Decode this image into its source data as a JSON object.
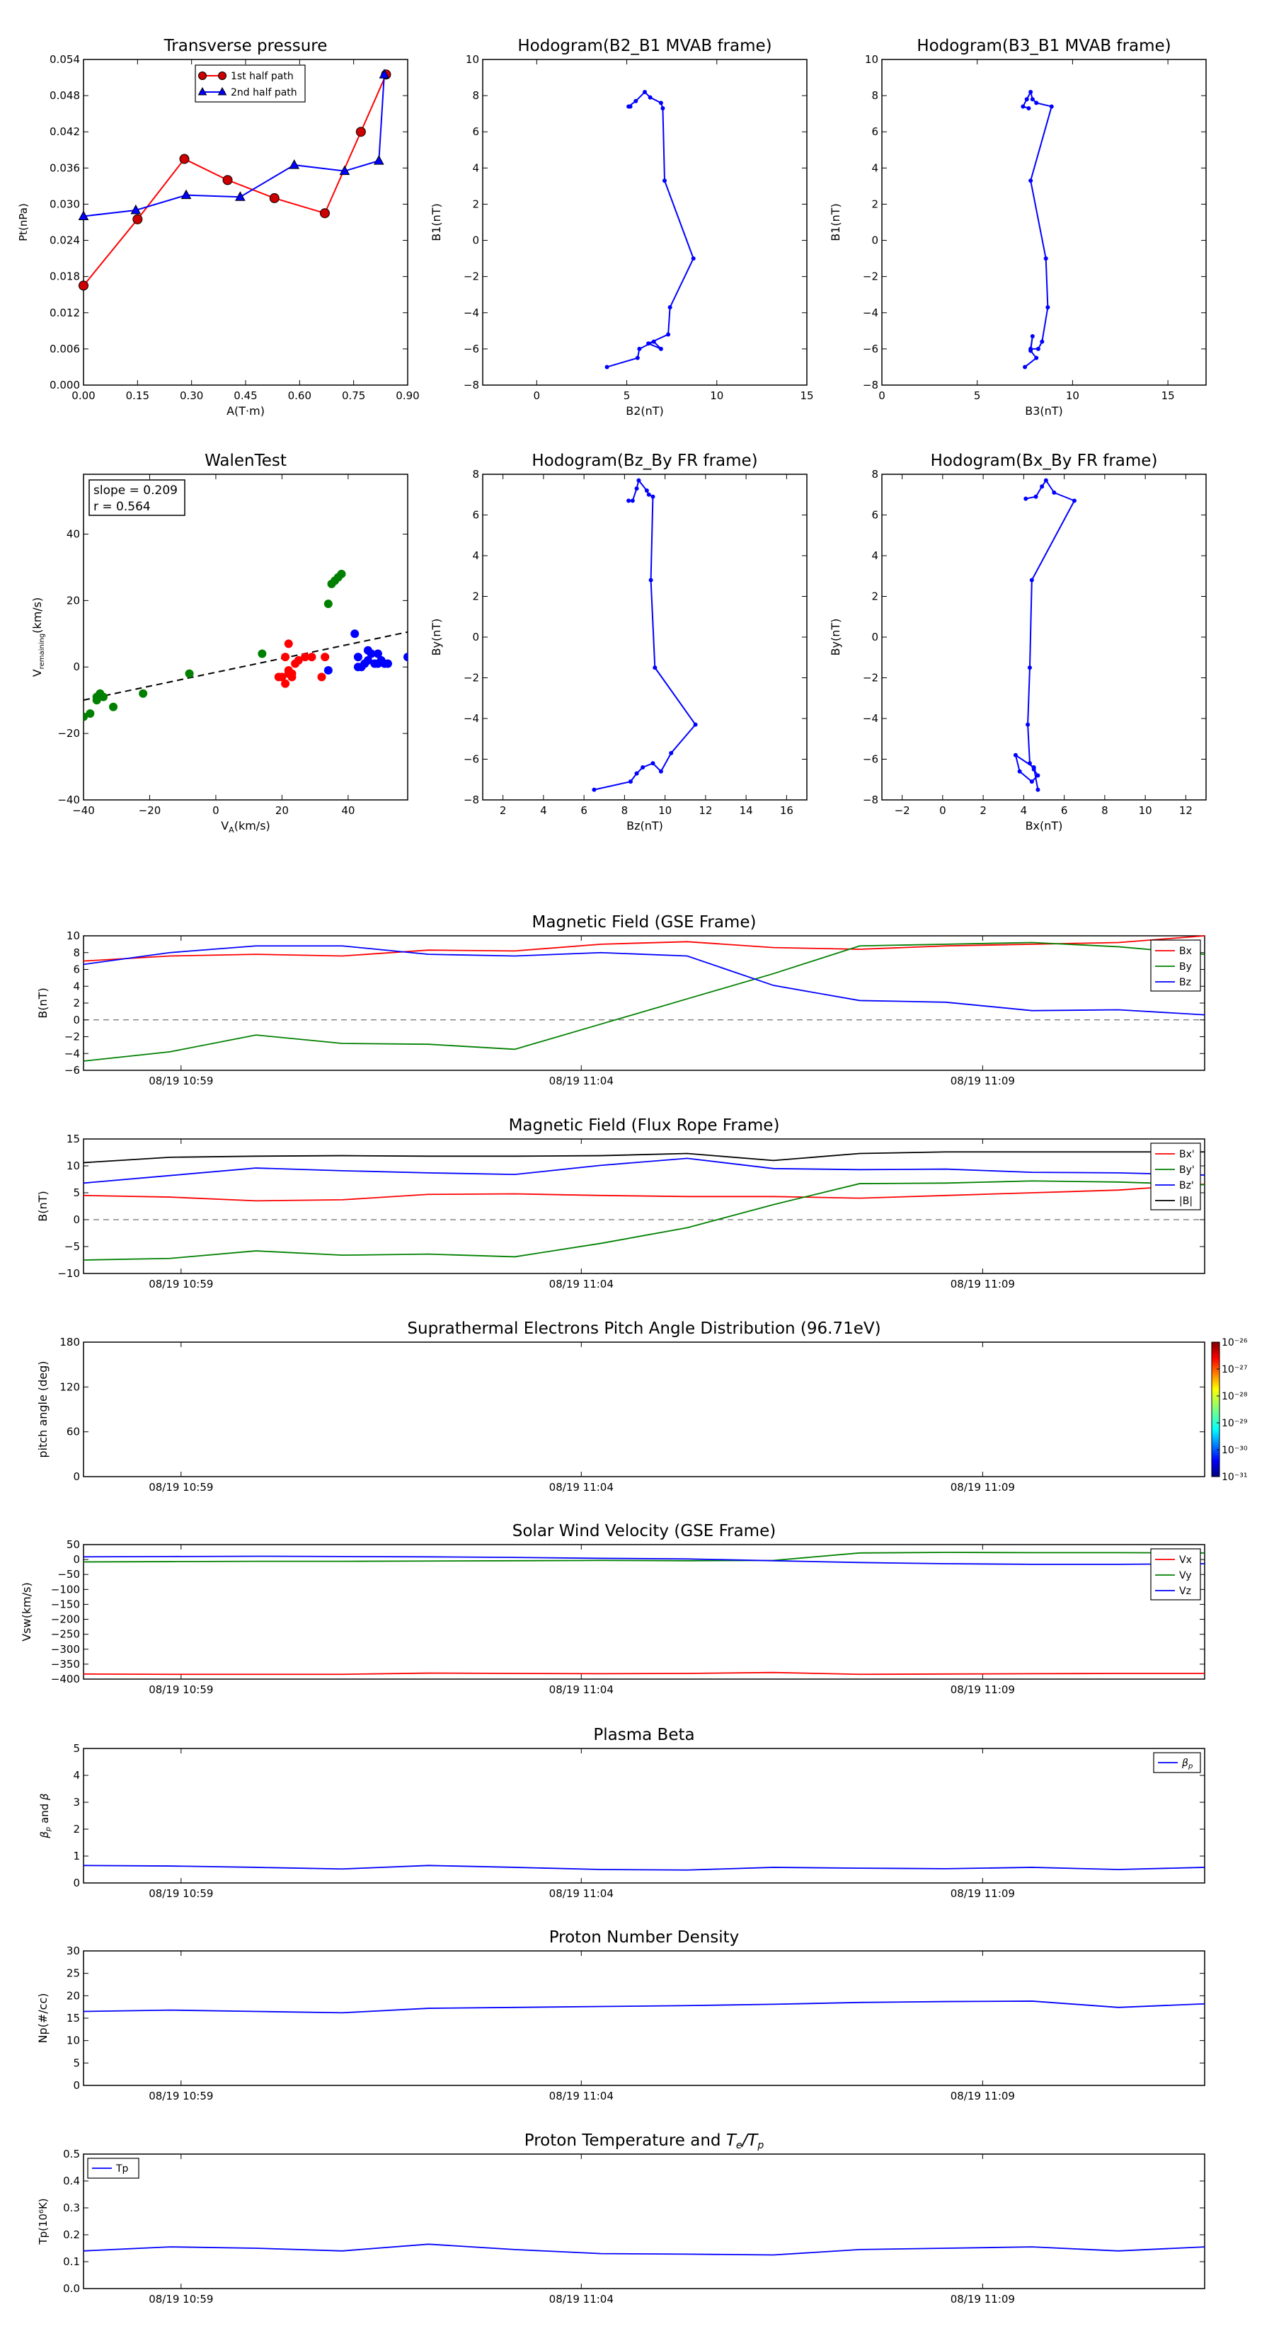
{
  "colors": {
    "red": "#ff0000",
    "green": "#008000",
    "blue": "#0000ff",
    "black": "#000000",
    "mark_red": "#cc0000"
  },
  "chart_data": [
    {
      "id": "tp",
      "type": "line",
      "title": "Transverse pressure",
      "xlabel": "A(T·m)",
      "ylabel": "Pt(nPa)",
      "xlim": [
        0,
        0.9
      ],
      "ylim": [
        0,
        0.054
      ],
      "xticks": [
        "0.00",
        "0.15",
        "0.30",
        "0.45",
        "0.60",
        "0.75",
        "0.90"
      ],
      "yticks": [
        "0.000",
        "0.006",
        "0.012",
        "0.018",
        "0.024",
        "0.030",
        "0.036",
        "0.042",
        "0.048",
        "0.054"
      ],
      "legend": "top-center",
      "series": [
        {
          "name": "1st half path",
          "color": "#ff0000",
          "marker": "circle",
          "x": [
            0.0,
            0.15,
            0.28,
            0.4,
            0.53,
            0.67,
            0.77,
            0.84
          ],
          "y": [
            0.0165,
            0.0275,
            0.0375,
            0.034,
            0.031,
            0.0285,
            0.042,
            0.0515
          ]
        },
        {
          "name": "2nd half path",
          "color": "#0000ff",
          "marker": "triangle",
          "x": [
            0.0,
            0.145,
            0.285,
            0.435,
            0.585,
            0.725,
            0.82,
            0.835
          ],
          "y": [
            0.028,
            0.029,
            0.0315,
            0.0312,
            0.0365,
            0.0355,
            0.0372,
            0.0515
          ]
        }
      ]
    },
    {
      "id": "h1",
      "type": "line",
      "title": "Hodogram(B2_B1 MVAB frame)",
      "xlabel": "B2(nT)",
      "ylabel": "B1(nT)",
      "xlim": [
        -3,
        15
      ],
      "ylim": [
        -8,
        10
      ],
      "xticks": [
        "0",
        "5",
        "10",
        "15"
      ],
      "yticks": [
        "−8",
        "−6",
        "−4",
        "−2",
        "0",
        "2",
        "4",
        "6",
        "8",
        "10"
      ],
      "series": [
        {
          "name": "",
          "color": "#0000ff",
          "marker": "dot",
          "x": [
            5.2,
            5.1,
            5.5,
            6.0,
            6.3,
            6.9,
            7.0,
            7.1,
            8.7,
            7.4,
            7.3,
            6.2,
            6.9,
            6.5,
            5.7,
            5.6,
            3.9
          ],
          "y": [
            7.4,
            7.4,
            7.7,
            8.2,
            7.9,
            7.6,
            7.3,
            3.3,
            -1.0,
            -3.7,
            -5.2,
            -5.7,
            -6.0,
            -5.6,
            -6.0,
            -6.5,
            -7.0
          ]
        }
      ]
    },
    {
      "id": "h2",
      "type": "line",
      "title": "Hodogram(B3_B1 MVAB frame)",
      "xlabel": "B3(nT)",
      "ylabel": "B1(nT)",
      "xlim": [
        0,
        17
      ],
      "ylim": [
        -8,
        10
      ],
      "xticks": [
        "0",
        "5",
        "10",
        "15"
      ],
      "yticks": [
        "−8",
        "−6",
        "−4",
        "−2",
        "0",
        "2",
        "4",
        "6",
        "8",
        "10"
      ],
      "series": [
        {
          "name": "",
          "color": "#0000ff",
          "marker": "dot",
          "x": [
            7.7,
            7.4,
            7.6,
            7.8,
            7.9,
            8.1,
            8.9,
            7.8,
            8.6,
            8.7,
            8.4,
            8.2,
            7.8,
            7.9,
            7.8,
            8.1,
            7.5
          ],
          "y": [
            7.3,
            7.4,
            7.8,
            8.2,
            7.8,
            7.6,
            7.4,
            3.3,
            -1.0,
            -3.7,
            -5.6,
            -6.0,
            -6.0,
            -5.3,
            -6.1,
            -6.5,
            -7.0
          ]
        }
      ]
    },
    {
      "id": "walen",
      "type": "scatter",
      "title": "WalenTest",
      "xlabel": "V_A(km/s)",
      "ylabel": "V_remaining(km/s)",
      "xlim": [
        -40,
        58
      ],
      "ylim": [
        -40,
        58
      ],
      "xticks": [
        "−40",
        "−20",
        "0",
        "20",
        "40"
      ],
      "yticks": [
        "−40",
        "−20",
        "0",
        "20",
        "40"
      ],
      "annotation": {
        "slope": "slope = 0.209",
        "r": "r = 0.564"
      },
      "fit": {
        "slope": 0.209,
        "intercept": -1.6
      },
      "series": [
        {
          "name": "",
          "color": "#008000",
          "x": [
            -40,
            -38,
            -36,
            -36,
            -35,
            -34,
            -31,
            -22,
            -8,
            14,
            34,
            35,
            36,
            37,
            38
          ],
          "y": [
            -15,
            -14,
            -9,
            -10,
            -8,
            -9,
            -12,
            -8,
            -2,
            4,
            19,
            25,
            26,
            27,
            28
          ]
        },
        {
          "name": "",
          "color": "#ff0000",
          "x": [
            19,
            20,
            21,
            21,
            22,
            22,
            22,
            23,
            23,
            24,
            25,
            27,
            29,
            32,
            33
          ],
          "y": [
            -3,
            -3,
            -5,
            3,
            7,
            -2,
            -1,
            -2,
            -3,
            1,
            2,
            3,
            3,
            -3,
            3
          ]
        },
        {
          "name": "",
          "color": "#0000ff",
          "x": [
            34,
            42,
            43,
            43,
            44,
            45,
            46,
            46,
            47,
            48,
            49,
            49,
            50,
            51,
            52,
            58
          ],
          "y": [
            -1,
            10,
            0,
            3,
            0,
            1,
            2,
            5,
            4,
            1,
            1,
            4,
            2,
            1,
            1,
            3
          ]
        }
      ]
    },
    {
      "id": "h3",
      "type": "line",
      "title": "Hodogram(Bz_By FR frame)",
      "xlabel": "Bz(nT)",
      "ylabel": "By(nT)",
      "xlim": [
        1,
        17
      ],
      "ylim": [
        -8,
        8
      ],
      "xticks": [
        "2",
        "4",
        "6",
        "8",
        "10",
        "12",
        "14",
        "16"
      ],
      "yticks": [
        "−8",
        "−6",
        "−4",
        "−2",
        "0",
        "2",
        "4",
        "6",
        "8"
      ],
      "series": [
        {
          "name": "",
          "color": "#0000ff",
          "marker": "dot",
          "x": [
            8.2,
            8.4,
            8.6,
            8.7,
            9.1,
            9.2,
            9.4,
            9.3,
            9.5,
            11.5,
            10.3,
            9.8,
            9.4,
            8.9,
            8.6,
            8.3,
            6.5
          ],
          "y": [
            6.7,
            6.7,
            7.3,
            7.7,
            7.2,
            7.0,
            6.9,
            2.8,
            -1.5,
            -4.3,
            -5.7,
            -6.6,
            -6.2,
            -6.4,
            -6.7,
            -7.1,
            -7.5
          ]
        }
      ]
    },
    {
      "id": "h4",
      "type": "line",
      "title": "Hodogram(Bx_By FR frame)",
      "xlabel": "Bx(nT)",
      "ylabel": "By(nT)",
      "xlim": [
        -3,
        13
      ],
      "ylim": [
        -8,
        8
      ],
      "xticks": [
        "−2",
        "0",
        "2",
        "4",
        "6",
        "8",
        "10",
        "12"
      ],
      "yticks": [
        "−8",
        "−6",
        "−4",
        "−2",
        "0",
        "2",
        "4",
        "6",
        "8"
      ],
      "series": [
        {
          "name": "",
          "color": "#0000ff",
          "marker": "dot",
          "x": [
            4.1,
            4.6,
            4.9,
            5.1,
            5.5,
            6.5,
            4.4,
            4.3,
            4.2,
            4.3,
            4.5,
            4.7,
            4.4,
            3.8,
            3.6,
            4.5,
            4.7
          ],
          "y": [
            6.8,
            6.9,
            7.4,
            7.7,
            7.1,
            6.7,
            2.8,
            -1.5,
            -4.3,
            -6.2,
            -6.5,
            -6.8,
            -7.1,
            -6.6,
            -5.8,
            -6.4,
            -7.5
          ]
        }
      ]
    },
    {
      "id": "b_gse",
      "type": "line",
      "title": "Magnetic Field (GSE Frame)",
      "ylabel": "B(nT)",
      "ylim": [
        -6,
        10
      ],
      "yticks": [
        "−6",
        "−4",
        "−2",
        "0",
        "2",
        "4",
        "6",
        "8",
        "10"
      ],
      "xticks": [
        "08/19 10:59",
        "08/19 11:04",
        "08/19 11:09"
      ],
      "legend": "right",
      "zero_line": true,
      "series": [
        {
          "name": "Bx",
          "color": "#ff0000",
          "values": [
            7.0,
            7.6,
            7.8,
            7.6,
            8.3,
            8.2,
            9.0,
            9.3,
            8.6,
            8.4,
            8.8,
            9.0,
            9.2,
            10.0
          ]
        },
        {
          "name": "By",
          "color": "#008000",
          "values": [
            -4.9,
            -3.8,
            -1.8,
            -2.8,
            -2.9,
            -3.5,
            -0.5,
            2.5,
            5.5,
            8.8,
            9.0,
            9.2,
            8.7,
            7.8
          ]
        },
        {
          "name": "Bz",
          "color": "#0000ff",
          "values": [
            6.6,
            8.0,
            8.8,
            8.8,
            7.8,
            7.6,
            8.0,
            7.6,
            4.1,
            2.3,
            2.1,
            1.1,
            1.2,
            0.6
          ]
        }
      ]
    },
    {
      "id": "b_fr",
      "type": "line",
      "title": "Magnetic Field (Flux Rope Frame)",
      "ylabel": "B(nT)",
      "ylim": [
        -10,
        15
      ],
      "yticks": [
        "−10",
        "−5",
        "0",
        "5",
        "10",
        "15"
      ],
      "xticks": [
        "08/19 10:59",
        "08/19 11:04",
        "08/19 11:09"
      ],
      "legend": "right",
      "zero_line": true,
      "series": [
        {
          "name": "Bx'",
          "color": "#ff0000",
          "values": [
            4.5,
            4.2,
            3.5,
            3.7,
            4.7,
            4.8,
            4.5,
            4.3,
            4.3,
            4.0,
            4.5,
            5.0,
            5.5,
            6.6
          ]
        },
        {
          "name": "By'",
          "color": "#008000",
          "values": [
            -7.5,
            -7.2,
            -5.8,
            -6.6,
            -6.4,
            -6.9,
            -4.4,
            -1.5,
            2.8,
            6.7,
            6.8,
            7.2,
            7.0,
            6.5
          ]
        },
        {
          "name": "Bz'",
          "color": "#0000ff",
          "values": [
            6.8,
            8.2,
            9.6,
            9.1,
            8.7,
            8.4,
            10.1,
            11.4,
            9.5,
            9.3,
            9.4,
            8.8,
            8.7,
            8.3
          ]
        },
        {
          "name": "|B|",
          "color": "#000000",
          "values": [
            10.6,
            11.6,
            11.8,
            11.9,
            11.8,
            11.8,
            11.9,
            12.3,
            11.0,
            12.3,
            12.6,
            12.6,
            12.6,
            12.6
          ]
        }
      ]
    },
    {
      "id": "pad",
      "type": "heatmap",
      "title": "Suprathermal Electrons Pitch Angle Distribution (96.71eV)",
      "ylabel": "pitch angle (deg)",
      "ylim": [
        0,
        180
      ],
      "yticks": [
        "0",
        "60",
        "120",
        "180"
      ],
      "xticks": [
        "08/19 10:59",
        "08/19 11:04",
        "08/19 11:09"
      ],
      "colorbar": {
        "labels": [
          "10⁻²⁶",
          "10⁻²⁷",
          "10⁻²⁸",
          "10⁻²⁹",
          "10⁻³⁰",
          "10⁻³¹"
        ]
      }
    },
    {
      "id": "vsw",
      "type": "line",
      "title": "Solar Wind Velocity (GSE Frame)",
      "ylabel": "Vsw(km/s)",
      "ylim": [
        -400,
        50
      ],
      "yticks": [
        "−400",
        "−350",
        "−300",
        "−250",
        "−200",
        "−150",
        "−100",
        "−50",
        "0",
        "50"
      ],
      "xticks": [
        "08/19 10:59",
        "08/19 11:04",
        "08/19 11:09"
      ],
      "legend": "right",
      "series": [
        {
          "name": "Vx",
          "color": "#ff0000",
          "values": [
            -383,
            -384,
            -384,
            -384,
            -380,
            -381,
            -382,
            -381,
            -378,
            -384,
            -383,
            -382,
            -381,
            -381
          ]
        },
        {
          "name": "Vy",
          "color": "#008000",
          "values": [
            -8,
            -7,
            -6,
            -6,
            -5,
            -4,
            -3,
            -4,
            -3,
            22,
            24,
            23,
            23,
            22
          ]
        },
        {
          "name": "Vz",
          "color": "#0000ff",
          "values": [
            9,
            10,
            11,
            10,
            9,
            7,
            4,
            2,
            -4,
            -10,
            -14,
            -16,
            -16,
            -14
          ]
        }
      ]
    },
    {
      "id": "beta",
      "type": "line",
      "title": "Plasma Beta",
      "ylabel": "β_p and β",
      "ylim": [
        0,
        5
      ],
      "yticks": [
        "0",
        "1",
        "2",
        "3",
        "4",
        "5"
      ],
      "xticks": [
        "08/19 10:59",
        "08/19 11:04",
        "08/19 11:09"
      ],
      "legend": "top-right",
      "series": [
        {
          "name": "β_p",
          "color": "#0000ff",
          "values": [
            0.65,
            0.63,
            0.58,
            0.52,
            0.65,
            0.58,
            0.5,
            0.48,
            0.58,
            0.55,
            0.53,
            0.58,
            0.5,
            0.58
          ]
        }
      ]
    },
    {
      "id": "np",
      "type": "line",
      "title": "Proton Number Density",
      "ylabel": "Np(#/cc)",
      "ylim": [
        0,
        30
      ],
      "yticks": [
        "0",
        "5",
        "10",
        "15",
        "20",
        "25",
        "30"
      ],
      "xticks": [
        "08/19 10:59",
        "08/19 11:04",
        "08/19 11:09"
      ],
      "series": [
        {
          "name": "",
          "color": "#0000ff",
          "values": [
            16.5,
            16.8,
            16.5,
            16.2,
            17.2,
            17.4,
            17.6,
            17.8,
            18.1,
            18.5,
            18.7,
            18.8,
            17.4,
            18.2
          ]
        }
      ]
    },
    {
      "id": "tp_temp",
      "type": "line",
      "title": "Proton Temperature and T_e/T_p",
      "ylabel": "Tp(10⁶K)",
      "ylim": [
        0,
        0.5
      ],
      "yticks": [
        "0.0",
        "0.1",
        "0.2",
        "0.3",
        "0.4",
        "0.5"
      ],
      "xticks": [
        "08/19 10:59",
        "08/19 11:04",
        "08/19 11:09"
      ],
      "legend": "top-left",
      "series": [
        {
          "name": "Tp",
          "color": "#0000ff",
          "values": [
            0.14,
            0.155,
            0.15,
            0.14,
            0.165,
            0.145,
            0.13,
            0.128,
            0.125,
            0.145,
            0.15,
            0.155,
            0.14,
            0.155
          ]
        }
      ]
    }
  ]
}
